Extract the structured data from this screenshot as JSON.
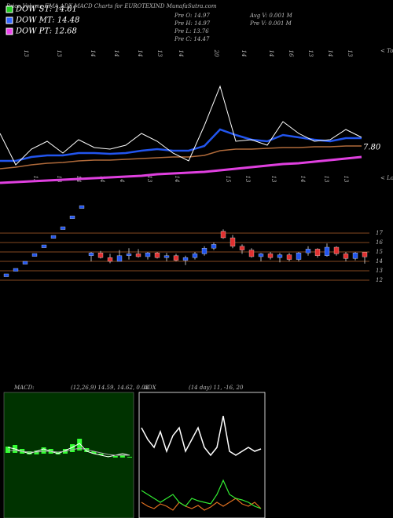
{
  "header": {
    "title": "Price,Volume,EMA,ADX,MACD Charts for EUROTEXIND MunafaSutra.com",
    "legend": [
      {
        "label": "DOW ST: 14.61",
        "color": "#22cc22"
      },
      {
        "label": "DOW MT: 14.48",
        "color": "#3366ff"
      },
      {
        "label": "DOW PT: 12.68",
        "color": "#ee44ee"
      }
    ],
    "info": [
      "Pre  O: 14.97",
      "Pre  H: 14.97",
      "Pre  L: 13.76",
      "Pre  C: 14.47",
      "Avg V: 0.001 M",
      "Pre  V: 0.001 M"
    ]
  },
  "chart_data": [
    {
      "type": "line",
      "ylim": [
        0,
        175
      ],
      "top_labels": [
        "13",
        "13",
        "14",
        "14",
        "14",
        "13",
        "14",
        "20",
        "14",
        "14",
        "16",
        "13",
        "14",
        "13"
      ],
      "bottom_labels": [
        "13",
        "13",
        "14",
        "14",
        "14",
        "13",
        "14",
        "15",
        "13",
        "13",
        "14",
        "13",
        "13"
      ],
      "annotations": [
        "< Tops",
        "< Lows",
        "7.80"
      ],
      "series": [
        {
          "color": "#ffffff",
          "width": 1,
          "values": [
            65,
            25,
            45,
            55,
            40,
            57,
            47,
            45,
            50,
            65,
            55,
            40,
            30,
            75,
            125,
            55,
            57,
            50,
            80,
            65,
            55,
            57,
            70,
            60
          ]
        },
        {
          "color": "#2255ee",
          "width": 2.5,
          "values": [
            30,
            30,
            35,
            37,
            37,
            40,
            40,
            39,
            40,
            43,
            45,
            43,
            43,
            49,
            70,
            63,
            57,
            55,
            63,
            60,
            57,
            55,
            59,
            59
          ]
        },
        {
          "color": "#b06a3a",
          "width": 1.5,
          "values": [
            20,
            22,
            25,
            27,
            28,
            30,
            31,
            31,
            32,
            33,
            34,
            35,
            35,
            37,
            43,
            45,
            45,
            46,
            47,
            47,
            48,
            48,
            49,
            49
          ]
        },
        {
          "color": "#e040e0",
          "width": 3,
          "values": [
            2,
            3,
            4,
            5,
            6,
            7,
            8,
            9,
            10,
            11,
            13,
            14,
            15,
            16,
            18,
            20,
            22,
            24,
            26,
            27,
            29,
            31,
            33,
            35
          ]
        }
      ]
    },
    {
      "type": "candlestick",
      "ylim": [
        11.75,
        20.5
      ],
      "yticks": [
        17,
        16,
        15,
        14,
        13,
        12
      ],
      "grid": true,
      "grid_color": "#b0602a",
      "up_color": "#2255ee",
      "down_color": "#e03030",
      "open": [
        12.37,
        12.95,
        13.7,
        14.53,
        15.45,
        16.45,
        17.37,
        18.53,
        19.62,
        14.6,
        14.9,
        14.4,
        14.0,
        14.6,
        14.8,
        14.5,
        14.9,
        14.4,
        14.6,
        14.1,
        14.4,
        14.8,
        15.4,
        17.2,
        16.5,
        15.6,
        15.2,
        14.5,
        14.8,
        14.4,
        14.7,
        14.2,
        14.9,
        15.3,
        14.6,
        15.5,
        14.8,
        14.3,
        14.97
      ],
      "high": [
        12.67,
        13.25,
        14.0,
        14.83,
        15.75,
        16.75,
        17.67,
        18.83,
        19.92,
        15.0,
        15.1,
        14.8,
        15.2,
        15.4,
        15.3,
        15.0,
        15.0,
        14.9,
        14.8,
        14.6,
        15.0,
        15.6,
        16.0,
        17.4,
        16.8,
        15.8,
        15.4,
        14.9,
        15.0,
        14.9,
        14.9,
        15.0,
        15.6,
        15.4,
        15.9,
        15.6,
        15.0,
        15.0,
        14.97
      ],
      "low": [
        12.37,
        12.95,
        13.7,
        14.53,
        15.45,
        16.45,
        17.37,
        18.53,
        19.62,
        14.0,
        14.3,
        13.8,
        14.0,
        14.2,
        14.4,
        14.2,
        14.3,
        14.0,
        14.0,
        13.6,
        14.2,
        14.6,
        15.2,
        16.4,
        15.4,
        14.8,
        14.4,
        14.0,
        14.2,
        13.9,
        14.0,
        14.0,
        14.6,
        14.4,
        14.5,
        14.6,
        14.0,
        14.1,
        13.76
      ],
      "close": [
        12.67,
        13.25,
        14.0,
        14.83,
        15.75,
        16.75,
        17.67,
        18.83,
        19.92,
        14.9,
        14.4,
        14.0,
        14.6,
        14.8,
        14.5,
        14.9,
        14.4,
        14.6,
        14.1,
        14.4,
        14.8,
        15.4,
        15.8,
        16.5,
        15.6,
        15.2,
        14.5,
        14.8,
        14.4,
        14.7,
        14.2,
        14.9,
        15.3,
        14.6,
        15.5,
        14.8,
        14.3,
        14.9,
        14.47
      ]
    },
    {
      "type": "macd",
      "label": "MACD:",
      "params": "(12,26,9) 14.59, 14.62, 0.03",
      "ylim": [
        0,
        160
      ],
      "bg": "#003300",
      "histogram": {
        "color": "#33ff33",
        "values": [
          8,
          10,
          6,
          4,
          5,
          8,
          6,
          3,
          6,
          10,
          15,
          5,
          3,
          2,
          1,
          2,
          3,
          1
        ]
      },
      "series": [
        {
          "color": "#ffffff",
          "values": [
            90,
            88,
            85,
            82,
            85,
            88,
            85,
            82,
            86,
            90,
            95,
            85,
            82,
            80,
            78,
            80,
            82,
            80
          ]
        },
        {
          "color": "#aaaaaa",
          "values": [
            86,
            86,
            85,
            84,
            84,
            85,
            85,
            84,
            85,
            87,
            89,
            87,
            85,
            83,
            81,
            80,
            80,
            80
          ]
        }
      ]
    },
    {
      "type": "adx",
      "label": "ADX",
      "params": "(14 day) 11, -16, 20",
      "ylim": [
        0,
        160
      ],
      "series": [
        {
          "color": "#ffffff",
          "values": [
            115,
            100,
            90,
            110,
            85,
            105,
            115,
            85,
            100,
            115,
            90,
            80,
            90,
            130,
            85,
            80,
            85,
            90,
            85,
            88
          ]
        },
        {
          "color": "#33ee33",
          "values": [
            35,
            30,
            25,
            20,
            25,
            30,
            20,
            15,
            25,
            22,
            20,
            18,
            30,
            48,
            30,
            25,
            23,
            20,
            15,
            12
          ]
        },
        {
          "color": "#e07020",
          "values": [
            20,
            15,
            12,
            18,
            15,
            10,
            20,
            15,
            12,
            16,
            10,
            14,
            20,
            15,
            20,
            25,
            18,
            15,
            20,
            12
          ]
        }
      ]
    }
  ]
}
